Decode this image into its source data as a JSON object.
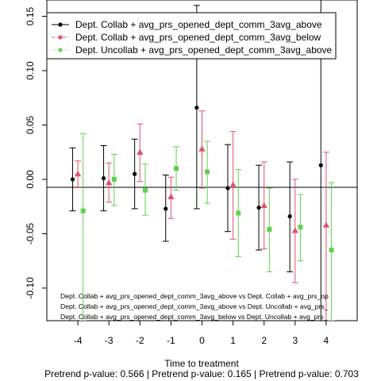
{
  "chart_data": {
    "type": "scatter",
    "xlabel": "Time to treatment",
    "ylabel": "",
    "subtitle": "Pretrend p-value: 0.566 | Pretrend p-value: 0.165 | Pretrend p-value: 0.703",
    "xlim": [
      -5.0,
      5.0
    ],
    "ylim": [
      -0.13,
      0.165
    ],
    "x_ticks": [
      "-4",
      "-3",
      "-2",
      "-1",
      "0",
      "1",
      "2",
      "3",
      "4"
    ],
    "y_ticks": [
      "-0.10",
      "-0.05",
      "0.00",
      "0.05",
      "0.10",
      "0.15"
    ],
    "reference_line_y": 0,
    "legend_position": "top-left",
    "series": [
      {
        "name": "Dept. Collab + avg_prs_opened_dept_comm_3avg_above",
        "color": "#000000",
        "marker": "circle",
        "points": [
          {
            "x": -4,
            "y": 0.0,
            "lo": -0.029,
            "hi": 0.029
          },
          {
            "x": -3,
            "y": 0.001,
            "lo": -0.029,
            "hi": 0.031
          },
          {
            "x": -2,
            "y": 0.005,
            "lo": -0.027,
            "hi": 0.037
          },
          {
            "x": -1,
            "y": -0.027,
            "lo": -0.057,
            "hi": 0.004
          },
          {
            "x": 0,
            "y": 0.066,
            "lo": -0.027,
            "hi": 0.16
          },
          {
            "x": 1,
            "y": -0.008,
            "lo": -0.048,
            "hi": 0.032
          },
          {
            "x": 2,
            "y": -0.026,
            "lo": -0.065,
            "hi": 0.013
          },
          {
            "x": 3,
            "y": -0.034,
            "lo": -0.085,
            "hi": 0.016
          },
          {
            "x": 4,
            "y": 0.013,
            "lo": -0.13,
            "hi": 0.165
          }
        ]
      },
      {
        "name": "Dept. Collab + avg_prs_opened_dept_comm_3avg_below",
        "color": "#DF536B",
        "marker": "triangle",
        "points": [
          {
            "x": -4,
            "y": 0.005,
            "lo": -0.007,
            "hi": 0.017
          },
          {
            "x": -3,
            "y": -0.003,
            "lo": -0.021,
            "hi": 0.015
          },
          {
            "x": -2,
            "y": 0.025,
            "lo": -0.002,
            "hi": 0.051
          },
          {
            "x": -1,
            "y": -0.016,
            "lo": -0.036,
            "hi": 0.002
          },
          {
            "x": 0,
            "y": 0.028,
            "lo": -0.008,
            "hi": 0.063
          },
          {
            "x": 1,
            "y": -0.005,
            "lo": -0.055,
            "hi": 0.044
          },
          {
            "x": 2,
            "y": -0.024,
            "lo": -0.064,
            "hi": 0.016
          },
          {
            "x": 3,
            "y": -0.047,
            "lo": -0.095,
            "hi": 0.0
          },
          {
            "x": 4,
            "y": -0.042,
            "lo": -0.13,
            "hi": 0.025
          }
        ]
      },
      {
        "name": "Dept. Uncollab + avg_prs_opened_dept_comm_3avg_above",
        "color": "#61D04F",
        "marker": "square",
        "points": [
          {
            "x": -4,
            "y": -0.029,
            "lo": -0.13,
            "hi": 0.042
          },
          {
            "x": -3,
            "y": 0.0,
            "lo": -0.024,
            "hi": 0.023
          },
          {
            "x": -2,
            "y": -0.01,
            "lo": -0.033,
            "hi": 0.014
          },
          {
            "x": -1,
            "y": 0.01,
            "lo": -0.01,
            "hi": 0.03
          },
          {
            "x": 0,
            "y": 0.007,
            "lo": -0.022,
            "hi": 0.035
          },
          {
            "x": 1,
            "y": -0.031,
            "lo": -0.071,
            "hi": 0.009
          },
          {
            "x": 2,
            "y": -0.046,
            "lo": -0.085,
            "hi": -0.008
          },
          {
            "x": 3,
            "y": -0.044,
            "lo": -0.075,
            "hi": -0.014
          },
          {
            "x": 4,
            "y": -0.065,
            "lo": -0.13,
            "hi": -0.003
          }
        ]
      }
    ],
    "annotations": [
      "Dept. Collab + avg_prs_opened_dept_comm_3avg_above vs Dept. Collab + avg_prs_op",
      "Dept. Collab + avg_prs_opened_dept_comm_3avg_above vs Dept. Uncollab + avg_prs_",
      "Dept. Collab + avg_prs_opened_dept_comm_3avg_below vs Dept. Uncollab + avg_prs_"
    ]
  }
}
